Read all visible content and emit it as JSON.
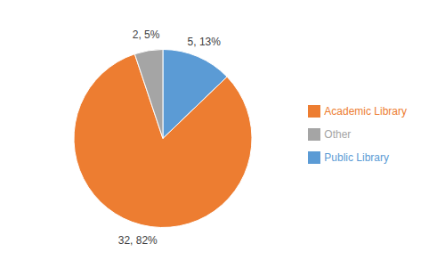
{
  "chart_data": {
    "type": "pie",
    "categories": [
      "Public Library",
      "Academic Library",
      "Other"
    ],
    "values": [
      5,
      32,
      2
    ],
    "value_labels": [
      "5, 13%",
      "32, 82%",
      "2, 5%"
    ],
    "colors": [
      "#5b9bd5",
      "#ed7d31",
      "#a5a5a5"
    ],
    "data_labels": true,
    "legend": "right"
  }
}
